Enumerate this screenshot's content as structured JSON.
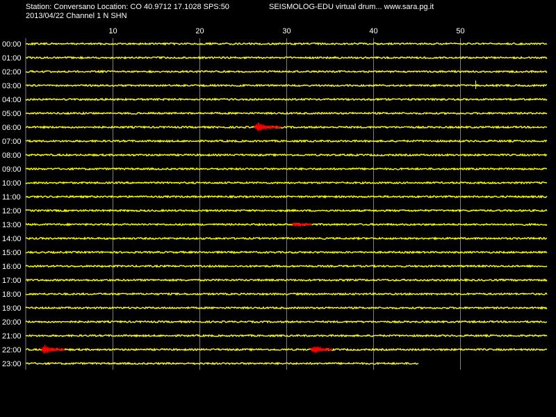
{
  "header": {
    "station_line": "Station: Conversano Location: CO 40.9712 17.1028 SPS:50",
    "date_line": "2013/04/22  Channel 1 N SHN",
    "brand_line": "SEISMOLOG-EDU virtual drum... www.sara.pg.it"
  },
  "colors": {
    "background": "#000000",
    "trace": "#ffff00",
    "event": "#ff0000",
    "grid": "#808080",
    "text": "#ffffff"
  },
  "chart_data": {
    "type": "line",
    "title": "",
    "xlabel": "",
    "ylabel": "",
    "xlim": [
      0,
      60
    ],
    "x_ticks": [
      10,
      20,
      30,
      40,
      50
    ],
    "grid": true,
    "rows": [
      {
        "label": "00:00",
        "end_minute": 60
      },
      {
        "label": "01:00",
        "end_minute": 60
      },
      {
        "label": "02:00",
        "end_minute": 60
      },
      {
        "label": "03:00",
        "end_minute": 60
      },
      {
        "label": "04:00",
        "end_minute": 60
      },
      {
        "label": "05:00",
        "end_minute": 60
      },
      {
        "label": "06:00",
        "end_minute": 60
      },
      {
        "label": "07:00",
        "end_minute": 60
      },
      {
        "label": "08:00",
        "end_minute": 60
      },
      {
        "label": "09:00",
        "end_minute": 60
      },
      {
        "label": "10:00",
        "end_minute": 60
      },
      {
        "label": "11:00",
        "end_minute": 60
      },
      {
        "label": "12:00",
        "end_minute": 60
      },
      {
        "label": "13:00",
        "end_minute": 60
      },
      {
        "label": "14:00",
        "end_minute": 60
      },
      {
        "label": "15:00",
        "end_minute": 60
      },
      {
        "label": "16:00",
        "end_minute": 60
      },
      {
        "label": "17:00",
        "end_minute": 60
      },
      {
        "label": "18:00",
        "end_minute": 60
      },
      {
        "label": "19:00",
        "end_minute": 60
      },
      {
        "label": "20:00",
        "end_minute": 60
      },
      {
        "label": "21:00",
        "end_minute": 60
      },
      {
        "label": "22:00",
        "end_minute": 60
      },
      {
        "label": "23:00",
        "end_minute": 45.2
      }
    ],
    "events": [
      {
        "row": "06:00",
        "start_minute": 26.3,
        "end_minute": 29.4,
        "peak_minute": 26.8,
        "amplitude": 1.0
      },
      {
        "row": "13:00",
        "start_minute": 30.7,
        "end_minute": 32.9,
        "peak_minute": 31.0,
        "amplitude": 0.35
      },
      {
        "row": "22:00",
        "start_minute": 1.8,
        "end_minute": 4.5,
        "peak_minute": 2.2,
        "amplitude": 0.9
      },
      {
        "row": "22:00",
        "start_minute": 32.8,
        "end_minute": 35.3,
        "peak_minute": 33.3,
        "amplitude": 0.85
      }
    ]
  }
}
